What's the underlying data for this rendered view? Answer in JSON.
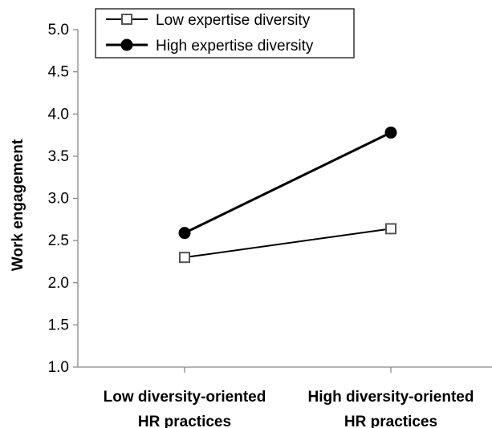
{
  "chart_data": {
    "type": "line",
    "title": "",
    "xlabel": "",
    "ylabel": "Work engagement",
    "categories": [
      [
        "Low diversity-oriented",
        "HR practices"
      ],
      [
        "High diversity-oriented",
        "HR practices"
      ]
    ],
    "ylim": [
      1.0,
      5.0
    ],
    "yticks": [
      "1.0",
      "1.5",
      "2.0",
      "2.5",
      "3.0",
      "3.5",
      "4.0",
      "4.5",
      "5.0"
    ],
    "grid": false,
    "legend_position": "top-left",
    "series": [
      {
        "name": "Low expertise diversity",
        "marker": "square-open",
        "color": "#000000",
        "values": [
          2.3,
          2.64
        ]
      },
      {
        "name": "High expertise diversity",
        "marker": "circle-filled",
        "color": "#000000",
        "values": [
          2.59,
          3.78
        ]
      }
    ]
  }
}
